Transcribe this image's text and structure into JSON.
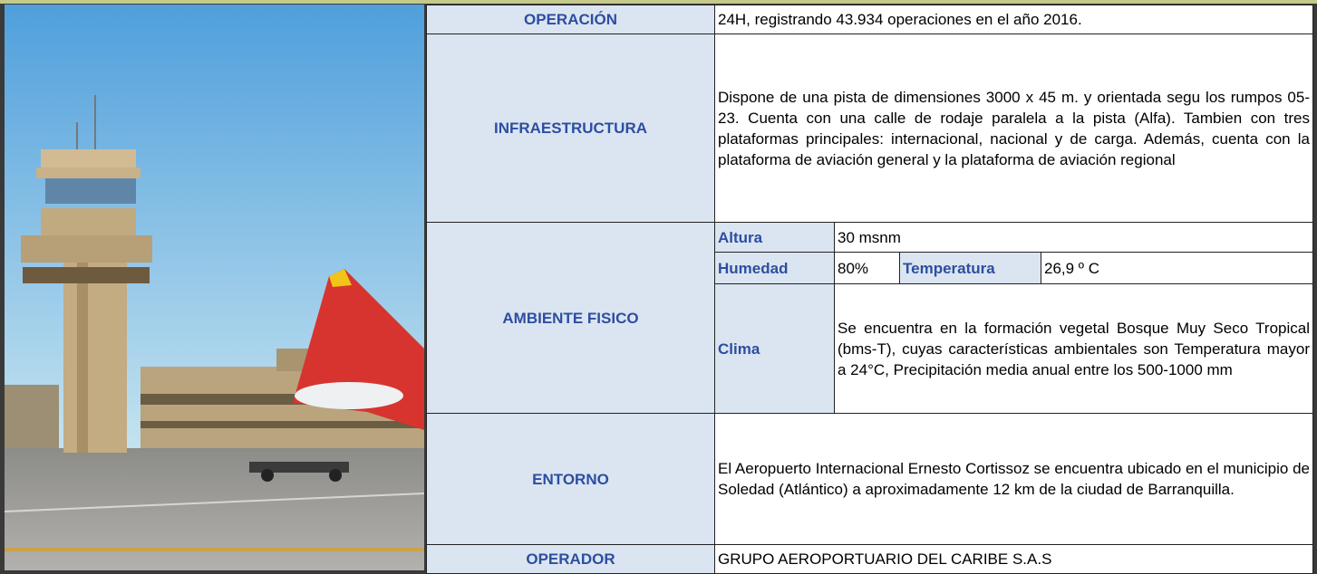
{
  "table": {
    "rows": [
      {
        "label": "OPERACIÓN",
        "value": "24H, registrando 43.934 operaciones en el año 2016."
      },
      {
        "label": "INFRAESTRUCTURA",
        "value": "Dispone de una pista de dimensiones 3000 x 45 m. y orientada segu los rumpos 05-23. Cuenta con una calle de rodaje paralela a la pista (Alfa). Tambien  con tres plataformas principales: internacional, nacional y de carga. Además, cuenta con la plataforma de aviación general y la plataforma de aviación regional"
      },
      {
        "label": "AMBIENTE FISICO",
        "details": [
          {
            "label": "Altura",
            "value": "30 msnm"
          },
          {
            "label": "Humedad",
            "value": "80%"
          },
          {
            "label": "Temperatura",
            "value": "26,9 º C"
          },
          {
            "label": "Clima",
            "value": "Se encuentra en la formación vegetal Bosque Muy Seco Tropical (bms-T), cuyas características ambientales son Temperatura mayor a 24°C, Precipitación media anual entre los 500-1000 mm"
          }
        ]
      },
      {
        "label": "ENTORNO",
        "value": "El Aeropuerto Internacional Ernesto Cortissoz se encuentra ubicado en el municipio de Soledad (Atlántico) a aproximadamente 12 km de la ciudad de Barranquilla."
      },
      {
        "label": "OPERADOR",
        "value": "GRUPO AEROPORTUARIO DEL CARIBE S.A.S"
      }
    ]
  }
}
